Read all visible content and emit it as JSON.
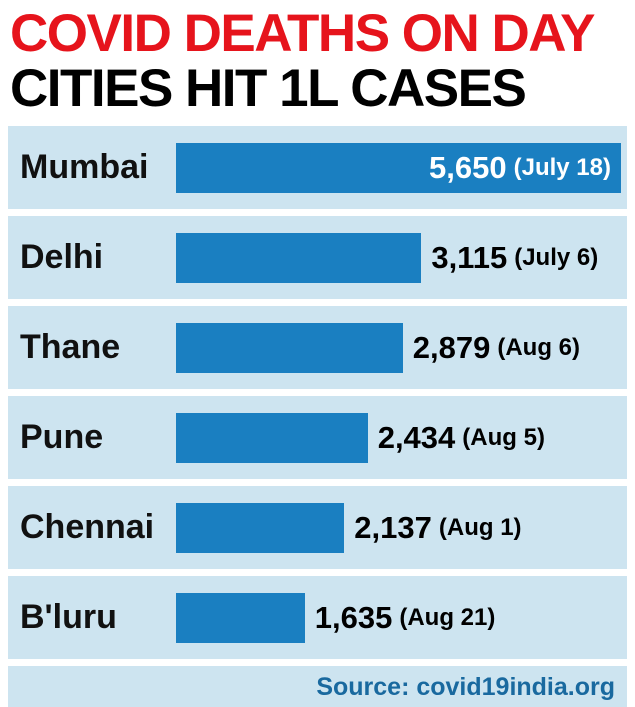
{
  "title": {
    "line1": "COVID DEATHS ON DAY",
    "line2": "CITIES HIT 1L CASES"
  },
  "source": "Source: covid19india.org",
  "colors": {
    "title_red": "#e6141c",
    "bar_blue": "#1a7fc1",
    "panel_blue": "#cde4f0",
    "source_blue": "#19699f"
  },
  "chart_data": {
    "type": "bar",
    "orientation": "horizontal",
    "title": "COVID DEATHS ON DAY CITIES HIT 1L CASES",
    "categories": [
      "Mumbai",
      "Delhi",
      "Thane",
      "Pune",
      "Chennai",
      "B'luru"
    ],
    "values": [
      5650,
      3115,
      2879,
      2434,
      2137,
      1635
    ],
    "value_labels": [
      "5,650",
      "3,115",
      "2,879",
      "2,434",
      "2,137",
      "1,635"
    ],
    "date_labels": [
      "(July 18)",
      "(July 6)",
      "(Aug 6)",
      "(Aug 5)",
      "(Aug 1)",
      "(Aug 21)"
    ],
    "xlim": [
      0,
      5650
    ],
    "grid": false,
    "legend": false,
    "source": "Source: covid19india.org"
  }
}
